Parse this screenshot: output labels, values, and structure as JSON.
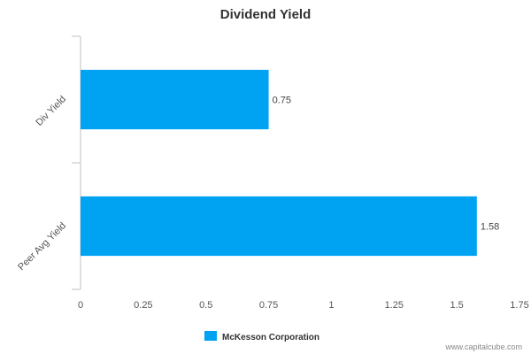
{
  "chart_data": {
    "type": "bar",
    "orientation": "horizontal",
    "title": "Dividend Yield",
    "categories": [
      "Div Yield",
      "Peer Avg Yield"
    ],
    "series": [
      {
        "name": "McKesson Corporation",
        "values": [
          0.75,
          1.58
        ],
        "color": "#00a2f2"
      }
    ],
    "data_labels": [
      "0.75",
      "1.58"
    ],
    "xlim": [
      0,
      1.75
    ],
    "xticks": [
      0,
      0.25,
      0.5,
      0.75,
      1,
      1.25,
      1.5,
      1.75
    ],
    "xtick_labels": [
      "0",
      "0.25",
      "0.5",
      "0.75",
      "1",
      "1.25",
      "1.5",
      "1.75"
    ],
    "grid": false,
    "legend_position": "bottom-center"
  },
  "credit": "www.capitalcube.com",
  "colors": {
    "bar": "#00a2f2",
    "axis": "#c0c0c0"
  }
}
